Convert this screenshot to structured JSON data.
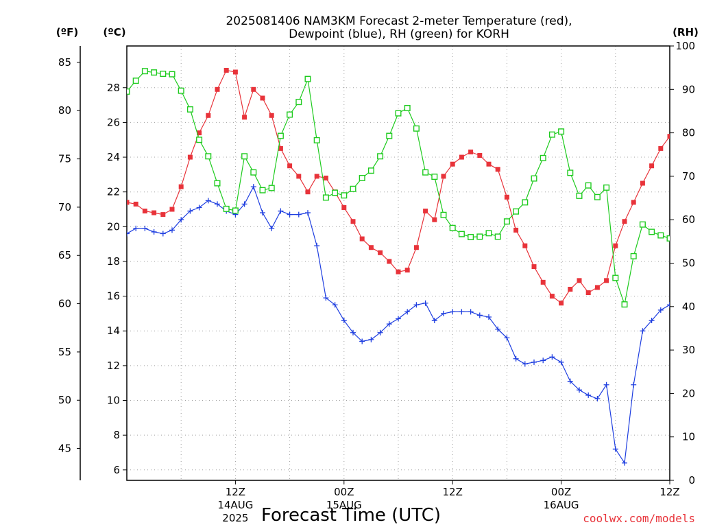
{
  "title_line1": "2025081406 NAM3KM Forecast 2-meter Temperature (red),",
  "title_line2": "Dewpoint (blue), RH (green) for KORH",
  "units": {
    "f": "(ºF)",
    "c": "(ºC)",
    "rh": "(RH)"
  },
  "xlabel": "Forecast Time (UTC)",
  "credit": "coolwx.com/models",
  "x_ticks": [
    {
      "label": "12Z",
      "date": "14AUG",
      "year": "2025",
      "hour": 12
    },
    {
      "label": "00Z",
      "date": "15AUG",
      "year": "",
      "hour": 24
    },
    {
      "label": "12Z",
      "date": "",
      "year": "",
      "hour": 36
    },
    {
      "label": "00Z",
      "date": "16AUG",
      "year": "",
      "hour": 48
    },
    {
      "label": "12Z",
      "date": "",
      "year": "",
      "hour": 60
    }
  ],
  "f_ticks": [
    "85",
    "80",
    "75",
    "70",
    "65",
    "60",
    "55",
    "50",
    "45"
  ],
  "c_ticks": [
    "28",
    "26",
    "24",
    "22",
    "20",
    "18",
    "16",
    "14",
    "12",
    "10",
    "8",
    "6"
  ],
  "rh_ticks": [
    "100",
    "90",
    "80",
    "70",
    "60",
    "50",
    "40",
    "30",
    "20",
    "10",
    "0"
  ],
  "chart_data": {
    "type": "line",
    "title": "2025081406 NAM3KM Forecast 2-meter Temperature (red), Dewpoint (blue), RH (green) for KORH",
    "xlabel": "Forecast Time (UTC)",
    "x_start": "2025-08-14 06Z",
    "x_step_hours": 1,
    "x_range_hours": [
      0,
      60
    ],
    "ylim_c": [
      5.4,
      30.4
    ],
    "ylim_f": [
      41.7,
      86.7
    ],
    "ylim_rh": [
      0,
      100
    ],
    "grid": true,
    "series": [
      {
        "name": "2-meter Temperature",
        "color": "#e8333a",
        "units": "C",
        "marker": "filled-square",
        "values": [
          21.4,
          21.3,
          20.9,
          20.8,
          20.7,
          21.0,
          22.3,
          24.0,
          25.4,
          26.4,
          27.9,
          29.0,
          28.9,
          26.3,
          27.9,
          27.4,
          26.4,
          24.5,
          23.5,
          22.9,
          22.0,
          22.9,
          22.8,
          22.0,
          21.1,
          20.3,
          19.3,
          18.8,
          18.5,
          18.0,
          17.4,
          17.5,
          18.8,
          20.9,
          20.4,
          22.9,
          23.6,
          24.0,
          24.3,
          24.1,
          23.6,
          23.3,
          21.7,
          19.8,
          18.9,
          17.7,
          16.8,
          16.0,
          15.6,
          16.4,
          16.9,
          16.2,
          16.5,
          16.9,
          18.9,
          20.3,
          21.4,
          22.5,
          23.5,
          24.5,
          25.2
        ]
      },
      {
        "name": "Dewpoint",
        "color": "#1e3ee0",
        "units": "C",
        "marker": "plus",
        "values": [
          19.6,
          19.9,
          19.9,
          19.7,
          19.6,
          19.8,
          20.4,
          20.9,
          21.1,
          21.5,
          21.3,
          20.9,
          20.7,
          21.3,
          22.3,
          20.8,
          19.9,
          20.9,
          20.7,
          20.7,
          20.8,
          18.9,
          15.9,
          15.5,
          14.6,
          13.9,
          13.4,
          13.5,
          13.9,
          14.4,
          14.7,
          15.1,
          15.5,
          15.6,
          14.6,
          15.0,
          15.1,
          15.1,
          15.1,
          14.9,
          14.8,
          14.1,
          13.6,
          12.4,
          12.1,
          12.2,
          12.3,
          12.5,
          12.2,
          11.1,
          10.6,
          10.3,
          10.1,
          10.9,
          7.2,
          6.4,
          10.9,
          14.0,
          14.6,
          15.2,
          15.5
        ]
      },
      {
        "name": "RH",
        "color": "#1ecb1e",
        "units": "%",
        "marker": "open-square",
        "values": [
          89.5,
          92.0,
          94.2,
          93.9,
          93.6,
          93.5,
          89.7,
          85.4,
          78.4,
          74.6,
          68.4,
          62.5,
          62.1,
          74.6,
          70.9,
          66.8,
          67.3,
          79.3,
          84.2,
          87.1,
          92.4,
          78.3,
          65.1,
          66.2,
          65.6,
          67.1,
          69.6,
          71.3,
          74.6,
          79.3,
          84.5,
          85.7,
          81.0,
          70.9,
          69.9,
          61.1,
          58.1,
          56.7,
          56.0,
          56.1,
          56.9,
          56.1,
          59.6,
          61.9,
          64.0,
          69.5,
          74.2,
          79.6,
          80.3,
          70.8,
          65.5,
          67.9,
          65.2,
          67.4,
          46.6,
          40.5,
          51.6,
          58.9,
          57.2,
          56.4,
          55.7
        ]
      }
    ]
  }
}
